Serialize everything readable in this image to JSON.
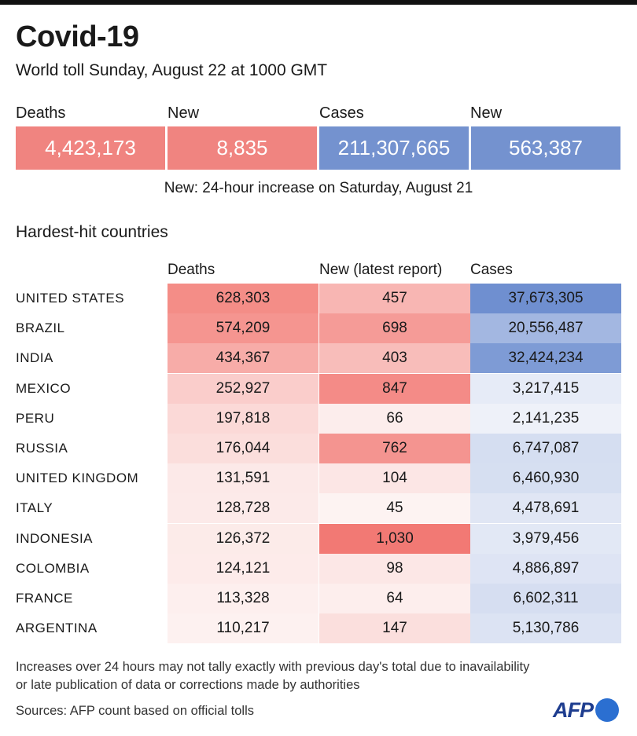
{
  "header": {
    "title": "Covid-19",
    "subtitle": "World toll Sunday, August 22 at 1000 GMT"
  },
  "summary": {
    "deaths_label": "Deaths",
    "deaths_value": "4,423,173",
    "new_deaths_label": "New",
    "new_deaths_value": "8,835",
    "cases_label": "Cases",
    "cases_value": "211,307,665",
    "new_cases_label": "New",
    "new_cases_value": "563,387",
    "note": "New: 24-hour increase on Saturday, August 21"
  },
  "table": {
    "section_title": "Hardest-hit countries",
    "columns": [
      "Deaths",
      "New (latest report)",
      "Cases"
    ]
  },
  "colors": {
    "red_box": "#f08480",
    "blue_box": "#7492cf",
    "deaths_scale": [
      "#fdf1f0",
      "#f48d87"
    ],
    "new_scale": [
      "#fdf3f2",
      "#f27974"
    ],
    "cases_scale": [
      "#eef1f9",
      "#6f8fd0"
    ]
  },
  "chart_data": {
    "type": "table",
    "columns": [
      "Deaths",
      "New (latest report)",
      "Cases"
    ],
    "rows": [
      {
        "country": "UNITED STATES",
        "deaths": "628,303",
        "new": "457",
        "cases": "37,673,305"
      },
      {
        "country": "BRAZIL",
        "deaths": "574,209",
        "new": "698",
        "cases": "20,556,487"
      },
      {
        "country": "INDIA",
        "deaths": "434,367",
        "new": "403",
        "cases": "32,424,234"
      },
      {
        "country": "MEXICO",
        "deaths": "252,927",
        "new": "847",
        "cases": "3,217,415"
      },
      {
        "country": "PERU",
        "deaths": "197,818",
        "new": "66",
        "cases": "2,141,235"
      },
      {
        "country": "RUSSIA",
        "deaths": "176,044",
        "new": "762",
        "cases": "6,747,087"
      },
      {
        "country": "UNITED KINGDOM",
        "deaths": "131,591",
        "new": "104",
        "cases": "6,460,930"
      },
      {
        "country": "ITALY",
        "deaths": "128,728",
        "new": "45",
        "cases": "4,478,691"
      },
      {
        "country": "INDONESIA",
        "deaths": "126,372",
        "new": "1,030",
        "cases": "3,979,456"
      },
      {
        "country": "COLOMBIA",
        "deaths": "124,121",
        "new": "98",
        "cases": "4,886,897"
      },
      {
        "country": "FRANCE",
        "deaths": "113,328",
        "new": "64",
        "cases": "6,602,311"
      },
      {
        "country": "ARGENTINA",
        "deaths": "110,217",
        "new": "147",
        "cases": "5,130,786"
      }
    ]
  },
  "footer": {
    "footnote_line1": "Increases over 24 hours may not tally exactly with previous day's total due to inavailability",
    "footnote_line2": "or late publication of data or corrections made by authorities",
    "sources": "Sources: AFP count based on official tolls",
    "logo_text": "AFP"
  }
}
